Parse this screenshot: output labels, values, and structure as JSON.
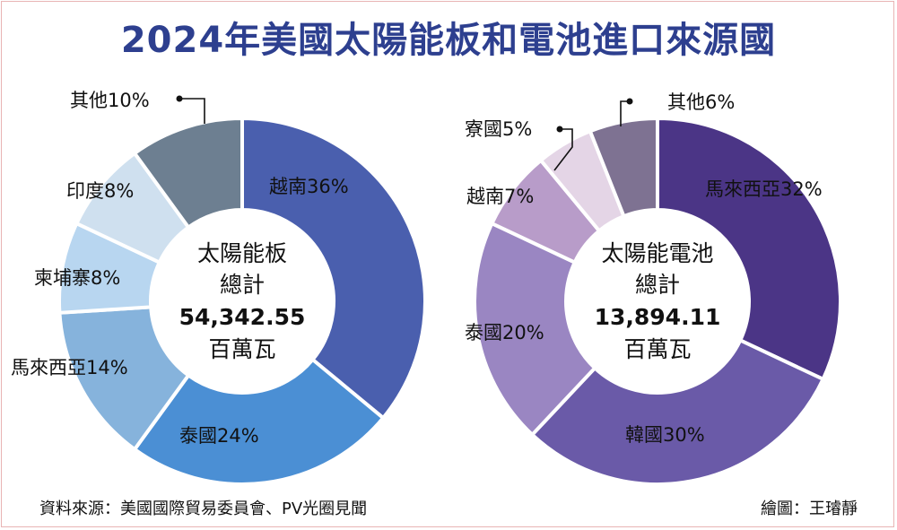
{
  "title": "2024年美國太陽能板和電池進口來源國",
  "footer": {
    "source": "資料來源：美國國際貿易委員會、PV光圈見聞",
    "credit": "繪圖：王璿靜"
  },
  "chart_data": [
    {
      "type": "pie",
      "donut": true,
      "center_lines": [
        "太陽能板",
        "總計",
        "54,342.55",
        "百萬瓦"
      ],
      "slices": [
        {
          "name": "越南",
          "value": 36,
          "label": "越南36%",
          "color": "#4a5fae"
        },
        {
          "name": "泰國",
          "value": 24,
          "label": "泰國24%",
          "color": "#4b8fd4"
        },
        {
          "name": "馬來西亞",
          "value": 14,
          "label": "馬來西亞14%",
          "color": "#86b3dc"
        },
        {
          "name": "柬埔寨",
          "value": 8,
          "label": "柬埔寨8%",
          "color": "#b8d6f0"
        },
        {
          "name": "印度",
          "value": 8,
          "label": "印度8%",
          "color": "#cfe0ef"
        },
        {
          "name": "其他",
          "value": 10,
          "label": "其他10%",
          "color": "#6d7f91"
        }
      ]
    },
    {
      "type": "pie",
      "donut": true,
      "center_lines": [
        "太陽能電池",
        "總計",
        "13,894.11",
        "百萬瓦"
      ],
      "slices": [
        {
          "name": "馬來西亞",
          "value": 32,
          "label": "馬來西亞32%",
          "color": "#4b3586"
        },
        {
          "name": "韓國",
          "value": 30,
          "label": "韓國30%",
          "color": "#6a5aa8"
        },
        {
          "name": "泰國",
          "value": 20,
          "label": "泰國20%",
          "color": "#9a86c2"
        },
        {
          "name": "越南",
          "value": 7,
          "label": "越南7%",
          "color": "#b89cc9"
        },
        {
          "name": "寮國",
          "value": 5,
          "label": "寮國5%",
          "color": "#e4d5e6"
        },
        {
          "name": "其他",
          "value": 6,
          "label": "其他6%",
          "color": "#7e7292"
        }
      ]
    }
  ]
}
